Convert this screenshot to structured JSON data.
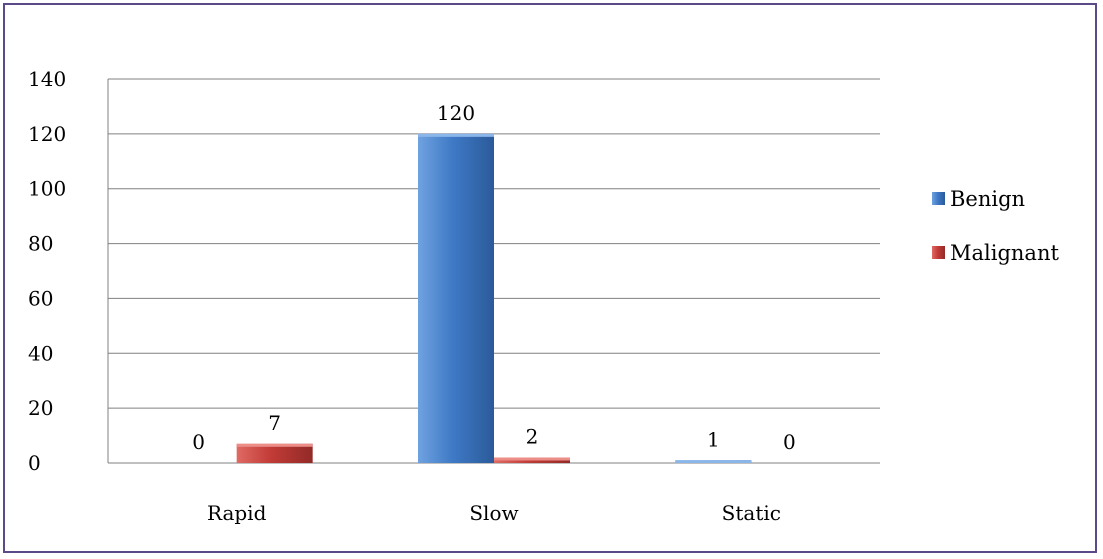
{
  "chart_data": {
    "type": "bar",
    "categories": [
      "Rapid",
      "Slow",
      "Static"
    ],
    "series": [
      {
        "name": "Benign",
        "values": [
          0,
          120,
          1
        ],
        "color": "#3f7ac6"
      },
      {
        "name": "Malignant",
        "values": [
          7,
          2,
          0
        ],
        "color": "#c23b37"
      }
    ],
    "yticks": [
      "0",
      "20",
      "40",
      "60",
      "80",
      "100",
      "120",
      "140"
    ],
    "ylim": [
      0,
      140
    ],
    "grid": true,
    "legend": "right",
    "data_labels": true
  }
}
